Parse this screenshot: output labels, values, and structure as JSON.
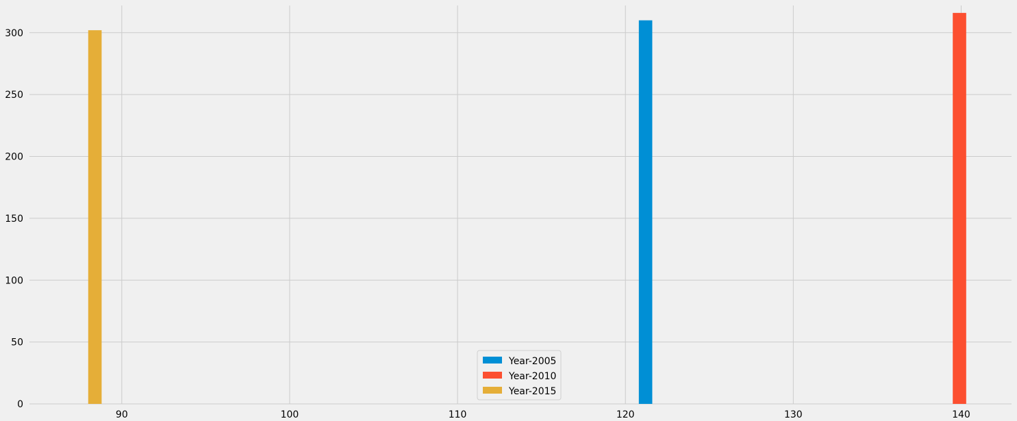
{
  "chart_data": {
    "type": "bar",
    "series": [
      {
        "name": "Year-2005",
        "color": "#008fd5",
        "x": 121.2,
        "value": 310
      },
      {
        "name": "Year-2010",
        "color": "#fc4f30",
        "x": 139.9,
        "value": 316
      },
      {
        "name": "Year-2015",
        "color": "#e5ae38",
        "x": 88.4,
        "value": 302
      }
    ],
    "xlim": [
      84.5,
      143
    ],
    "ylim": [
      0,
      322
    ],
    "xticks": [
      90,
      100,
      110,
      120,
      130,
      140
    ],
    "yticks": [
      0,
      50,
      100,
      150,
      200,
      250,
      300
    ],
    "bar_width": 0.8,
    "grid": true,
    "legend_placement": "lower-center",
    "title": "",
    "xlabel": "",
    "ylabel": ""
  }
}
